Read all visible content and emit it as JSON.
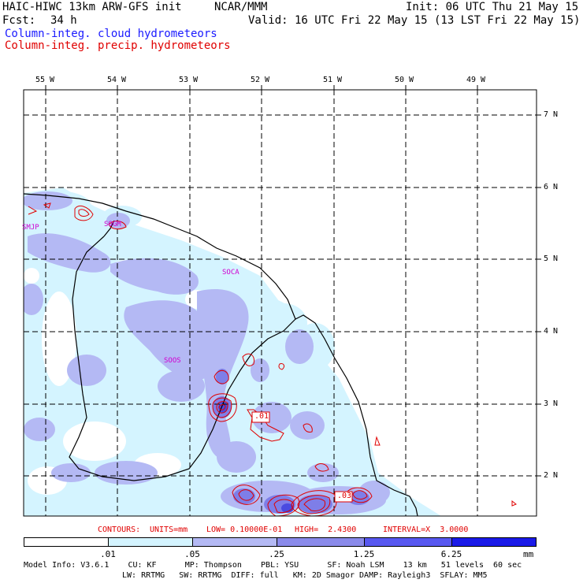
{
  "header": {
    "title": "HAIC-HIWC 13km ARW-GFS init",
    "org": "NCAR/MMM",
    "init": "Init: 06 UTC Thu 21 May 15",
    "fcst_label": "Fcst:",
    "fcst_value": "34 h",
    "valid": "Valid: 16 UTC Fri 22 May 15 (13 LST Fri 22 May 15)",
    "field1": "Column-integ. cloud hydrometeors",
    "field2": "Column-integ. precip. hydrometeors"
  },
  "colors": {
    "cloud_field": "#1a1aff",
    "precip_field": "#e00000",
    "fill_levels": [
      "#ffffff",
      "#d4f4ff",
      "#b4b9f4",
      "#8a8aea",
      "#5858f0",
      "#2a2ae6",
      "#0f0fd6"
    ]
  },
  "lon_labels": [
    "55 W",
    "54 W",
    "53 W",
    "52 W",
    "51 W",
    "50 W",
    "49 W"
  ],
  "lat_labels": [
    "7 N",
    "6 N",
    "5 N",
    "4 N",
    "3 N",
    "2 N"
  ],
  "places": [
    "SMJP",
    "SOGM",
    "SOCA",
    "SOOS"
  ],
  "contour_labels": [
    ".01",
    ".03"
  ],
  "contour_info": {
    "contours": "CONTOURS:",
    "units": "UNITS=mm",
    "low": "LOW= 0.10000E-01",
    "high": "HIGH=  2.4300",
    "interval": "INTERVAL=X  3.0000"
  },
  "colorbar": {
    "ticks": [
      ".01",
      ".05",
      ".25",
      "1.25",
      "6.25"
    ],
    "unit": "mm"
  },
  "model_info": {
    "line1": "Model Info: V3.6.1    CU: KF      MP: Thompson    PBL: YSU      SF: Noah LSM    13 km   51 levels  60 sec",
    "line2": "LW: RRTMG   SW: RRTMG  DIFF: full   KM: 2D Smagor DAMP: Rayleigh3  SFLAY: MM5"
  }
}
